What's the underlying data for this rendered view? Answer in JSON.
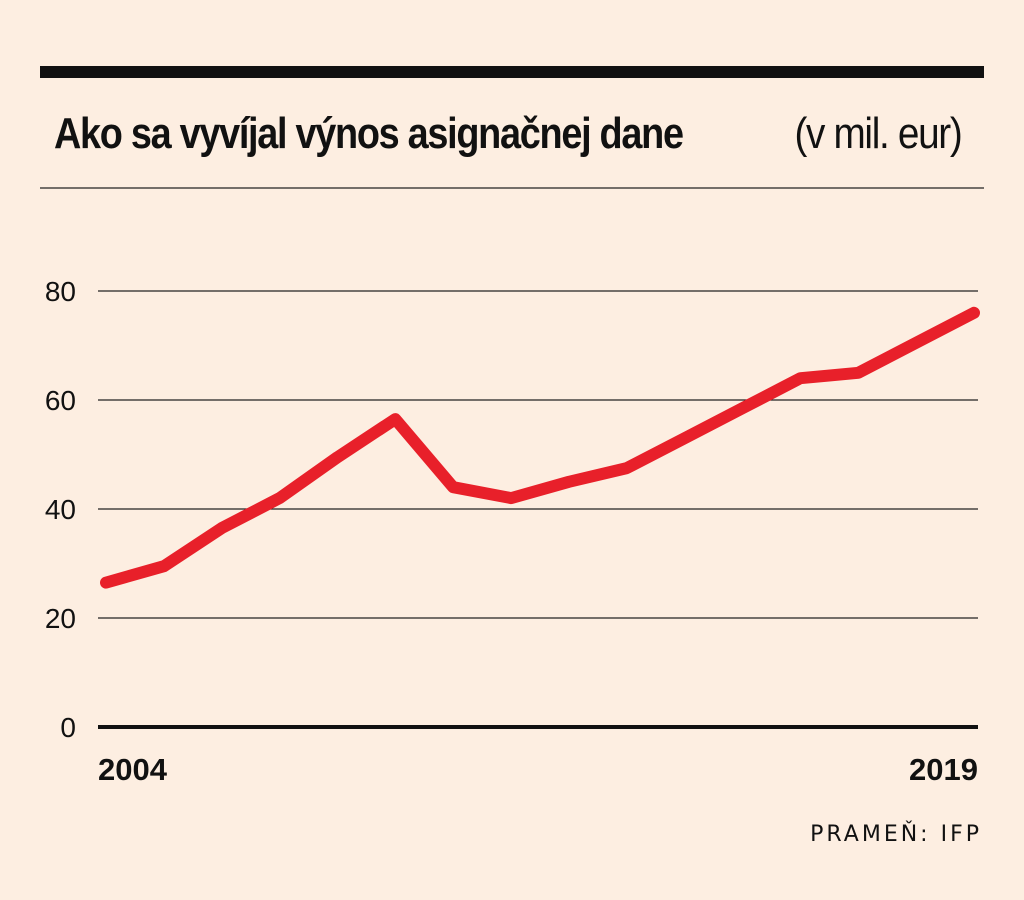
{
  "title": {
    "main": "Ako sa vyvíjal výnos asignačnej dane",
    "unit": "(v mil. eur)"
  },
  "source": "PRAMEŇ: IFP",
  "colors": {
    "background": "#fdeee1",
    "line": "#e8202a",
    "text": "#111111",
    "grid": "#222222"
  },
  "chart_data": {
    "type": "line",
    "title": "Ako sa vyvíjal výnos asignačnej dane (v mil. eur)",
    "xlabel": "",
    "ylabel": "",
    "x": [
      2004,
      2005,
      2006,
      2007,
      2008,
      2009,
      2010,
      2011,
      2012,
      2013,
      2014,
      2015,
      2016,
      2017,
      2018,
      2019
    ],
    "x_tick_labels": [
      {
        "value": 2004,
        "label": "2004"
      },
      {
        "value": 2019,
        "label": "2019"
      }
    ],
    "series": [
      {
        "name": "Výnos asignačnej dane",
        "values": [
          26.5,
          29.5,
          36.5,
          42,
          49.5,
          56.5,
          44,
          42,
          45,
          47.5,
          53,
          58.5,
          64,
          65,
          70.5,
          76
        ]
      }
    ],
    "ylim": [
      0,
      80
    ],
    "yticks": [
      0,
      20,
      40,
      60,
      80
    ],
    "grid": true
  }
}
